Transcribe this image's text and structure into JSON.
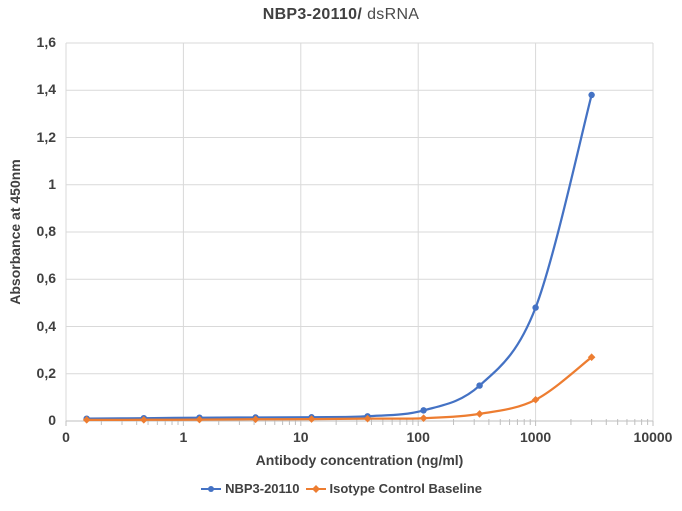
{
  "title": {
    "part1": "NBP3-20110/",
    "part2": "dsRNA"
  },
  "colors": {
    "series1": "#4472C4",
    "series2": "#ED7D31",
    "gridline": "#D9D9D9",
    "axis_line": "#BFBFBF",
    "tick_mark": "#BFBFBF",
    "text": "#404040",
    "background": "#FFFFFF"
  },
  "chart_data": {
    "type": "line",
    "title": "NBP3-20110/ dsRNA",
    "xlabel": "Antibody concentration (ng/ml)",
    "ylabel": "Absorbance at 450nm",
    "x_scale": "log",
    "xlim": [
      0.1,
      10000
    ],
    "ylim": [
      0,
      1.6
    ],
    "grid": true,
    "legend_position": "bottom",
    "x_tick_values": [
      0.1,
      1,
      10,
      100,
      1000,
      10000
    ],
    "x_tick_labels": [
      "0",
      "1",
      "10",
      "100",
      "1000",
      "10000"
    ],
    "y_tick_values": [
      0,
      0.2,
      0.4,
      0.6,
      0.8,
      1,
      1.2,
      1.4,
      1.6
    ],
    "y_tick_labels": [
      "0",
      "0,2",
      "0,4",
      "0,6",
      "0,8",
      "1",
      "1,2",
      "1,4",
      "1,6"
    ],
    "x": [
      0.15,
      0.46,
      1.37,
      4.12,
      12.35,
      37.04,
      111.1,
      333.3,
      1000,
      3000
    ],
    "series": [
      {
        "name": "NBP3-20110",
        "color": "#4472C4",
        "marker": "circle",
        "values": [
          0.01,
          0.012,
          0.014,
          0.015,
          0.016,
          0.02,
          0.045,
          0.15,
          0.48,
          1.38
        ]
      },
      {
        "name": "Isotype Control Baseline",
        "color": "#ED7D31",
        "marker": "diamond",
        "values": [
          0.005,
          0.005,
          0.006,
          0.007,
          0.008,
          0.01,
          0.012,
          0.03,
          0.09,
          0.27
        ]
      }
    ]
  }
}
